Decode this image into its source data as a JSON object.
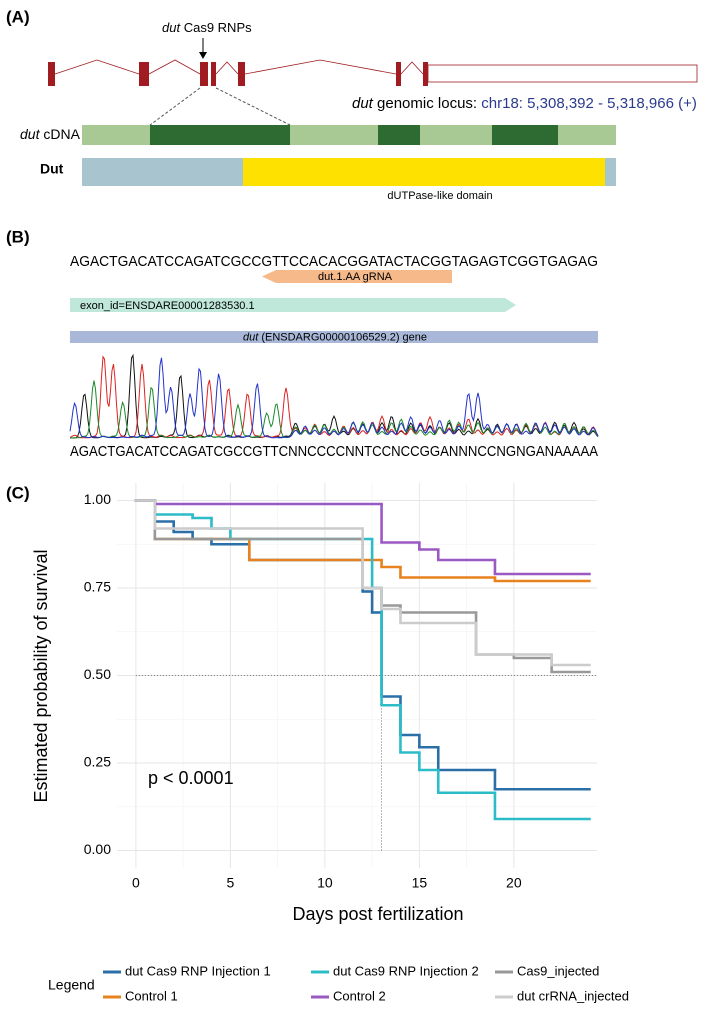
{
  "panel_a": {
    "label": "(A)",
    "rnp_label_italic": "dut",
    "rnp_label": "Cas9 RNPs",
    "locus_label_italic": "dut",
    "locus_label": "genomic locus:",
    "locus_coordinates": "chr18: 5,308,392 - 5,318,966 (+)",
    "cdna_label_italic": "dut",
    "cdna_label": "cDNA",
    "protein_label": "Dut",
    "domain_label": "dUTPase-like domain"
  },
  "panel_b": {
    "label": "(B)",
    "reference_sequence": "AGACTGACATCCAGATCGCCGTTCCACACGGATACTACGGTAGAGTCGGTGAGAG",
    "grna_label": "dut.1.AA   gRNA",
    "exon_label": "exon_id=ENSDARE00001283530.1",
    "gene_label_italic": "dut",
    "gene_label": "(ENSDARG00000106529.2) gene",
    "sample_sequence": "AGACTGACATCCAGATCGCCGTTCNNCCCCNNTCCNCCGGANNNCCNGNGANAAAAA"
  },
  "chart_data": {
    "type": "step",
    "panel_label": "(C)",
    "x_label": "Days post fertilization",
    "y_label": "Estimated probability of survival",
    "annotation": "p < 0.0001",
    "legend_title": "Legend",
    "grid": true,
    "xlim": [
      -1,
      24.4
    ],
    "ylim": [
      -0.05,
      1.05
    ],
    "xticks": [
      0,
      5,
      10,
      15,
      20
    ],
    "yticks": [
      {
        "value": 0,
        "label": "0.00"
      },
      {
        "value": 0.25,
        "label": "0.25"
      },
      {
        "value": 0.5,
        "label": "0.50"
      },
      {
        "value": 0.75,
        "label": "0.75"
      },
      {
        "value": 1,
        "label": "1.00"
      }
    ],
    "reference_lines": {
      "y": 0.5,
      "x": 13
    },
    "series": [
      {
        "name": "dut Cas9 RNP Injection 1",
        "color": "#2a6fa8",
        "x": [
          0,
          1,
          2,
          3,
          4,
          6,
          12,
          12.5,
          13,
          14,
          15,
          16,
          19,
          24
        ],
        "values": [
          1,
          0.94,
          0.91,
          0.89,
          0.875,
          0.83,
          0.74,
          0.68,
          0.44,
          0.33,
          0.295,
          0.23,
          0.175,
          0.175
        ]
      },
      {
        "name": "Control 1",
        "color": "#e8821e",
        "x": [
          0,
          1,
          6,
          13,
          14,
          19,
          24
        ],
        "values": [
          1,
          0.89,
          0.83,
          0.81,
          0.78,
          0.77,
          0.77
        ]
      },
      {
        "name": "dut Cas9 RNP Injection 2",
        "color": "#2bbcc8",
        "x": [
          0,
          1,
          3,
          4,
          5,
          12.5,
          13,
          14,
          15,
          16,
          19,
          24
        ],
        "values": [
          1,
          0.96,
          0.95,
          0.92,
          0.89,
          0.75,
          0.415,
          0.28,
          0.23,
          0.165,
          0.09,
          0.09
        ]
      },
      {
        "name": "Control 2",
        "color": "#9b59c4",
        "x": [
          0,
          1,
          13,
          15,
          16,
          19,
          24
        ],
        "values": [
          1,
          0.99,
          0.88,
          0.86,
          0.83,
          0.79,
          0.79
        ]
      },
      {
        "name": "Cas9_injected",
        "color": "#999999",
        "x": [
          0,
          1,
          12,
          13,
          14,
          18,
          20,
          22,
          24
        ],
        "values": [
          1,
          0.89,
          0.75,
          0.7,
          0.68,
          0.56,
          0.55,
          0.51,
          0.51
        ]
      },
      {
        "name": "dut crRNA_injected",
        "color": "#cccccc",
        "x": [
          0,
          1,
          12,
          13,
          14,
          18,
          22,
          24
        ],
        "values": [
          1,
          0.92,
          0.75,
          0.69,
          0.65,
          0.56,
          0.53,
          0.53
        ]
      }
    ]
  }
}
